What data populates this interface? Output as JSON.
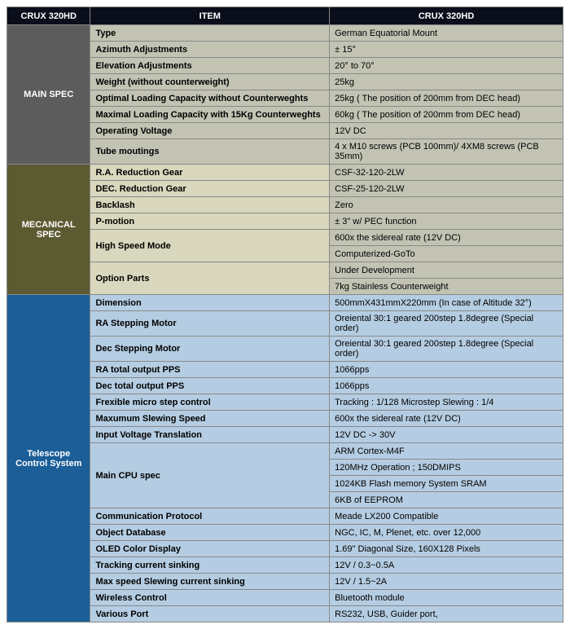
{
  "header": {
    "corner": "CRUX 320HD",
    "item": "ITEM",
    "value": "CRUX 320HD"
  },
  "sections": {
    "main": {
      "label": "MAIN SPEC",
      "rows": [
        {
          "item": "Type",
          "value": "German Equatorial Mount"
        },
        {
          "item": "Azimuth Adjustments",
          "value": "± 15°"
        },
        {
          "item": "Elevation Adjustments",
          "value": "20° to 70°"
        },
        {
          "item": "Weight (without counterweight)",
          "value": "25kg"
        },
        {
          "item": "Optimal Loading Capacity without Counterweghts",
          "value": "25kg ( The position of 200mm from DEC head)"
        },
        {
          "item": "Maximal Loading Capacity with 15Kg Counterweghts",
          "value": "60kg ( The position of 200mm from DEC head)"
        },
        {
          "item": "Operating Voltage",
          "value": "12V DC"
        },
        {
          "item": "Tube moutings",
          "value": "4 x M10 screws (PCB 100mm)/ 4XM8 screws (PCB 35mm)"
        }
      ]
    },
    "mech": {
      "label": "MECANICAL SPEC",
      "rows": [
        {
          "item": "R.A. Reduction Gear",
          "value": "CSF-32-120-2LW"
        },
        {
          "item": "DEC. Reduction Gear",
          "value": "CSF-25-120-2LW"
        },
        {
          "item": "Backlash",
          "value": "Zero"
        },
        {
          "item": "P-motion",
          "value": "± 3\"  w/ PEC function"
        },
        {
          "item": "High Speed Mode",
          "value": "600x the sidereal rate (12V DC)",
          "item_rowspan": 2
        },
        {
          "value": "Computerized-GoTo"
        },
        {
          "item": "Option Parts",
          "value": "Under Development",
          "item_rowspan": 2
        },
        {
          "value": "7kg Stainless Counterweight"
        }
      ]
    },
    "tele": {
      "label": "Telescope Control System",
      "rows": [
        {
          "item": "Dimension",
          "value": "500mmX431mmX220mm (In case of Altitude 32°)"
        },
        {
          "item": "RA Stepping Motor",
          "value": "Oreiental 30:1 geared 200step 1.8degree (Special order)"
        },
        {
          "item": "Dec Stepping Motor",
          "value": "Oreiental 30:1 geared 200step 1.8degree (Special order)"
        },
        {
          "item": "RA total output PPS",
          "value": "1066pps"
        },
        {
          "item": "Dec total output PPS",
          "value": "1066pps"
        },
        {
          "item": "Frexible micro step control",
          "value": " Tracking : 1/128 Microstep Slewing : 1/4"
        },
        {
          "item": "Maxumum Slewing Speed",
          "value": "600x the sidereal rate (12V DC)"
        },
        {
          "item": "Input Voltage Translation",
          "value": "12V DC -> 30V"
        },
        {
          "item": "Main CPU spec",
          "value": "ARM Cortex-M4F",
          "item_rowspan": 4
        },
        {
          "value": "120MHz Operation ; 150DMIPS"
        },
        {
          "value": "1024KB Flash memory System SRAM"
        },
        {
          "value": "6KB of EEPROM"
        },
        {
          "item": "Communication Protocol",
          "value": "Meade LX200 Compatible"
        },
        {
          "item": "Object Database",
          "value": "NGC, IC, M, Plenet, etc. over 12,000"
        },
        {
          "item": "OLED Color Display",
          "value": "1.69\" Diagonal Size,  160X128 Pixels"
        },
        {
          "item": "Tracking current sinking",
          "value": "12V / 0.3~0.5A"
        },
        {
          "item": "Max speed Slewing current sinking",
          "value": "12V / 1.5~2A"
        },
        {
          "item": "Wireless Control",
          "value": "Bluetooth module"
        },
        {
          "item": "Various Port",
          "value": "RS232, USB, Guider port,"
        }
      ]
    }
  },
  "colors": {
    "header_bg": "#0a0e1a",
    "header_fg": "#ffffff",
    "main_section_bg": "#5c5c5c",
    "mech_section_bg": "#5c5a31",
    "tele_section_bg": "#1b5e98",
    "main_row_bg": "#c3c3b4",
    "mech_item_bg": "#d9d7bd",
    "mech_val_bg": "#c3c3b4",
    "tele_row_bg": "#b5cde2",
    "border": "#888888"
  }
}
